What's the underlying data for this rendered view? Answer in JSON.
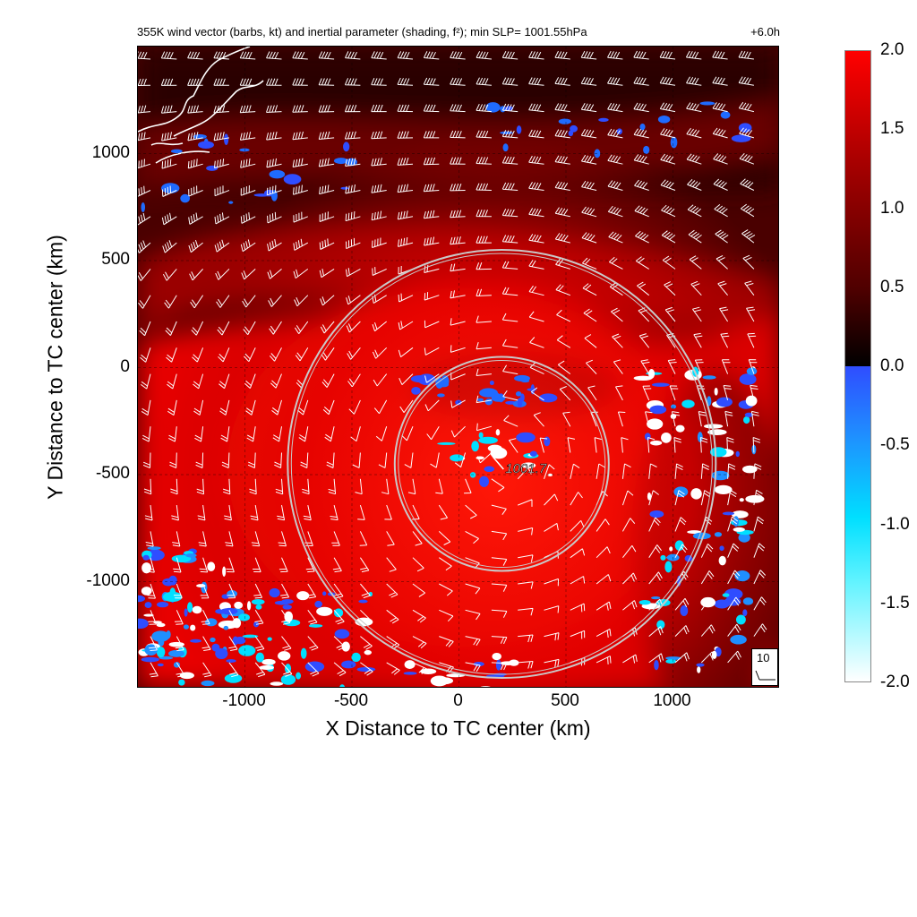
{
  "title_left": "355K wind vector (barbs, kt) and inertial parameter (shading, f²); min SLP= 1001.55hPa",
  "title_right": "+6.0h",
  "xlabel": "X Distance to TC center (km)",
  "ylabel": "Y Distance to TC center (km)",
  "x_ticks": [
    "-1000",
    "-500",
    "0",
    "500",
    "1000"
  ],
  "y_ticks": [
    "1000",
    "500",
    "0",
    "-500",
    "-1000"
  ],
  "x_tick_values": [
    -1000,
    -500,
    0,
    500,
    1000
  ],
  "y_tick_values": [
    1000,
    500,
    0,
    -500,
    -1000
  ],
  "x_range_km": [
    -1500,
    1500
  ],
  "y_range_km": [
    -1500,
    1500
  ],
  "center_label": "1001.7",
  "rings": {
    "center_km": [
      200,
      -450
    ],
    "radii_km": [
      500,
      1000
    ]
  },
  "colorbar": {
    "ticks": [
      "2.0",
      "1.5",
      "1.0",
      "0.5",
      "0.0",
      "-0.5",
      "-1.0",
      "-1.5",
      "-2.0"
    ],
    "range": [
      -2.0,
      2.0
    ],
    "positive_colors": [
      "#ff0000",
      "#a80000",
      "#500000",
      "#000000"
    ],
    "negative_colors": [
      "#2f4dff",
      "#1f8fff",
      "#00dfff",
      "#ffffff"
    ]
  },
  "barb_legend": {
    "label": "10"
  },
  "colors": {
    "coastline": "#ffffff",
    "barbs": "#ffffff",
    "rings": "#bbbbbb",
    "background": "#ffffff"
  }
}
